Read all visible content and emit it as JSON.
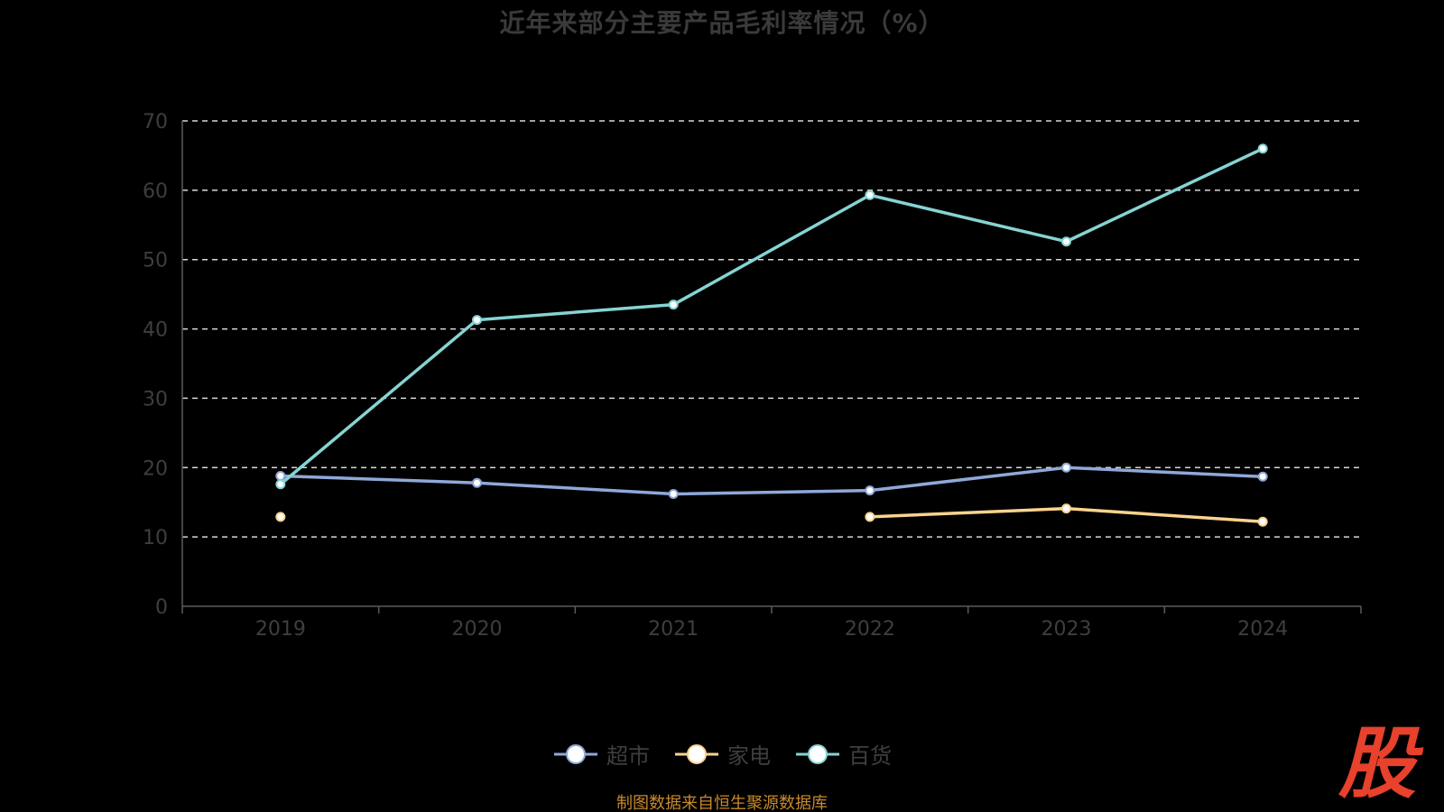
{
  "title": "近年来部分主要产品毛利率情况（%）",
  "source": "制图数据来自恒生聚源数据库",
  "watermark_text": "股",
  "colors": {
    "background": "#000000",
    "axis": "#5a5a5a",
    "grid": "#d8d8d8",
    "tick_label": "#3e3e3e",
    "source": "#c9892c",
    "watermark": "#e8412c"
  },
  "chart_data": {
    "type": "line",
    "categories": [
      "2019",
      "2020",
      "2021",
      "2022",
      "2023",
      "2024"
    ],
    "y_ticks": [
      "0",
      "10",
      "20",
      "30",
      "40",
      "50",
      "60",
      "70"
    ],
    "ylim": [
      0,
      70
    ],
    "grid": true,
    "grid_style": "dashed",
    "legend_position": "bottom-center",
    "series": [
      {
        "name": "超市",
        "color": "#8fa8d8",
        "values": [
          18.8,
          17.8,
          16.2,
          16.7,
          20.0,
          18.7
        ]
      },
      {
        "name": "家电",
        "color": "#fad38f",
        "values": [
          12.9,
          null,
          null,
          12.9,
          14.1,
          12.2
        ]
      },
      {
        "name": "百货",
        "color": "#86d3d3",
        "values": [
          17.6,
          41.3,
          43.5,
          59.3,
          52.6,
          66.0
        ]
      }
    ]
  }
}
